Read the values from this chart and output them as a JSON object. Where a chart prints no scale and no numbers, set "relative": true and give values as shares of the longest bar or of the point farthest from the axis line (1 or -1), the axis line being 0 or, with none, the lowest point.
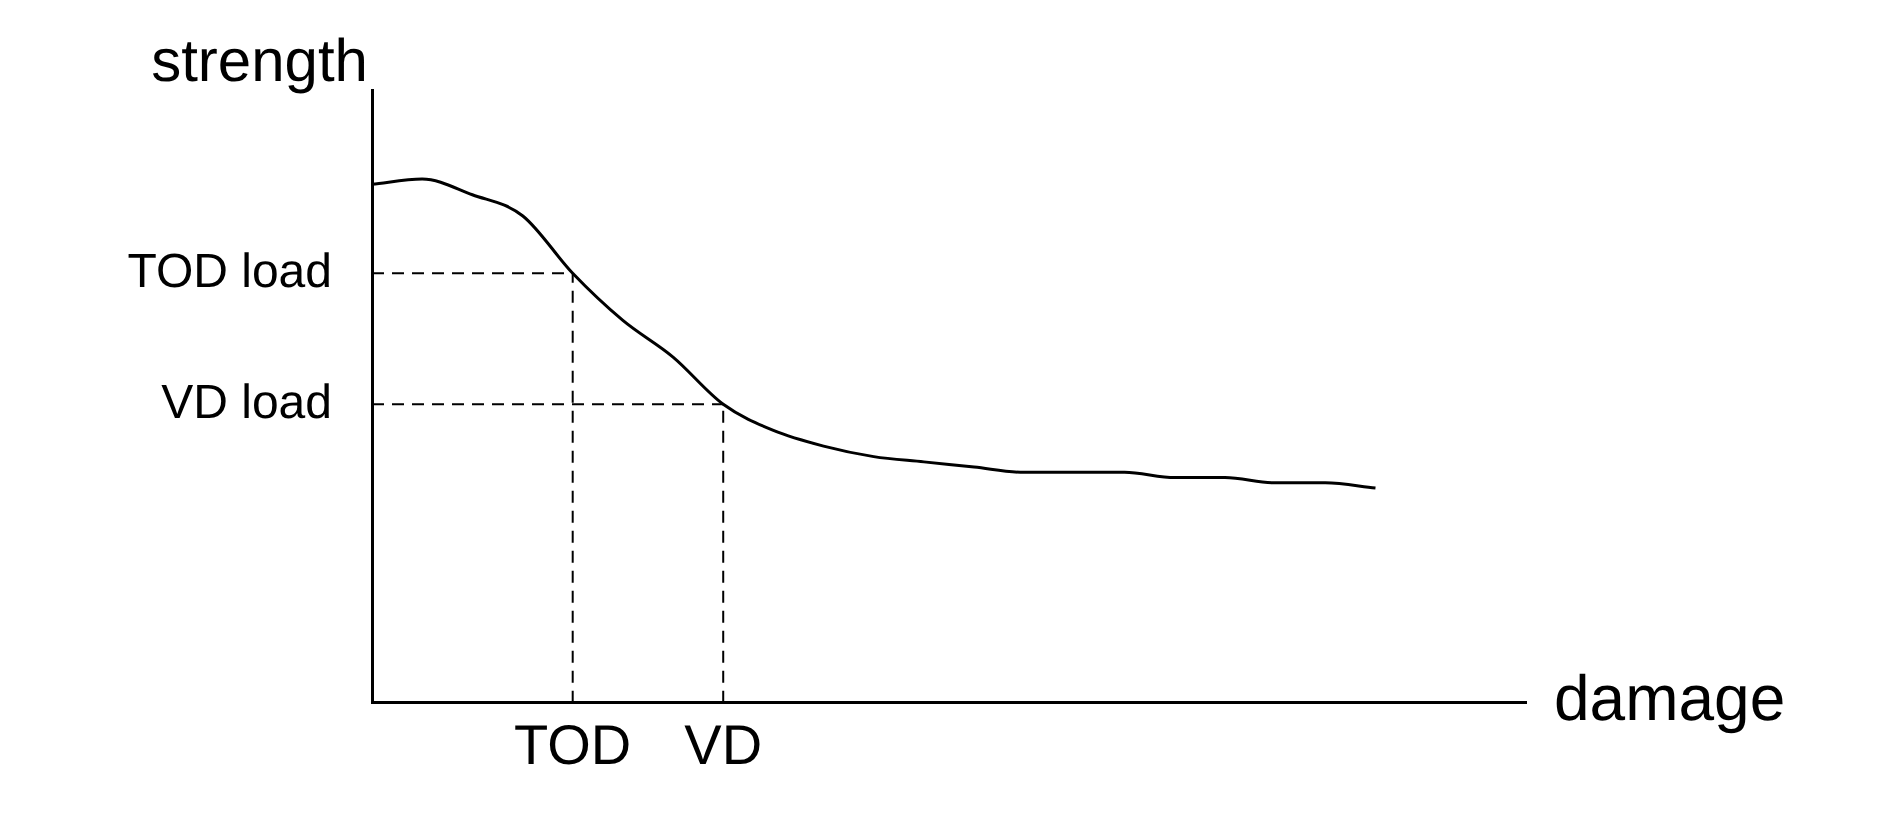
{
  "chart_data": {
    "type": "line",
    "relative": true,
    "xlabel": "damage",
    "ylabel": "strength",
    "categories": [
      null,
      null,
      null,
      null,
      "TOD",
      null,
      null,
      "VD",
      null,
      null,
      null,
      null,
      null,
      null,
      null,
      null,
      null,
      null,
      null,
      null,
      null,
      null,
      null,
      null
    ],
    "series": [
      {
        "color": "#000000",
        "values": [
          0.99,
          1.0,
          0.97,
          0.93,
          0.82,
          0.73,
          0.66,
          0.57,
          0.52,
          0.49,
          0.47,
          0.46,
          0.45,
          0.44,
          0.44,
          0.44,
          0.43,
          0.43,
          0.42,
          0.42,
          0.41,
          null,
          null,
          null
        ]
      }
    ],
    "ref_lines": [
      {
        "axis": "y",
        "value": 0.82,
        "label": "TOD load",
        "line_style": "dashed"
      },
      {
        "axis": "y",
        "value": 0.57,
        "label": "VD load",
        "line_style": "dashed"
      },
      {
        "axis": "x",
        "value": "TOD",
        "line_style": "dashed"
      },
      {
        "axis": "x",
        "value": "VD",
        "line_style": "dashed"
      }
    ],
    "grid": false,
    "legend": false,
    "marker": "none",
    "line_style": "solid"
  }
}
